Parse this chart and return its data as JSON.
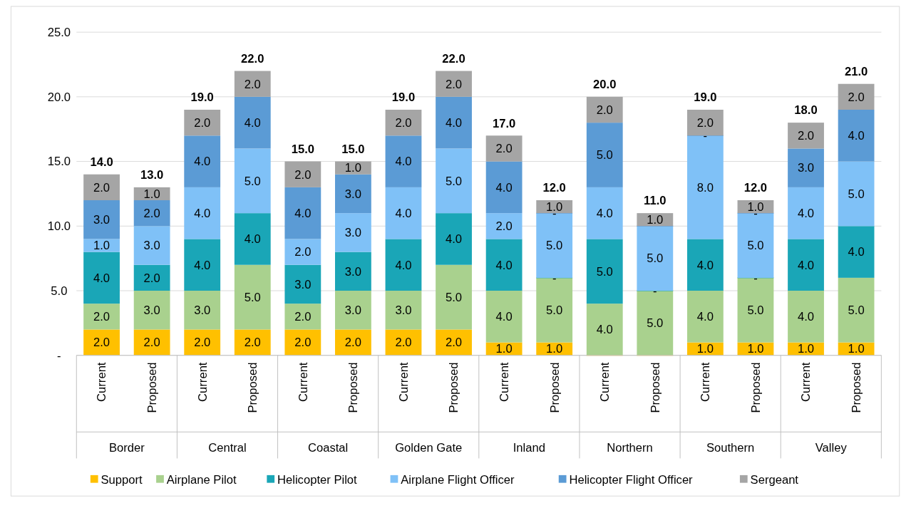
{
  "chart_data": {
    "type": "bar",
    "stacked": true,
    "categories": [
      "Current",
      "Proposed",
      "Current",
      "Proposed",
      "Current",
      "Proposed",
      "Current",
      "Proposed",
      "Current",
      "Proposed",
      "Current",
      "Proposed",
      "Current",
      "Proposed",
      "Current",
      "Proposed"
    ],
    "annotations": [
      "Border",
      "Central",
      "Coastal",
      "Golden Gate",
      "Inland",
      "Northern",
      "Southern",
      "Valley"
    ],
    "series": [
      {
        "name": "Support",
        "color": "#ffc000",
        "values": [
          2,
          2,
          2,
          2,
          2,
          2,
          2,
          2,
          1,
          1,
          0,
          0,
          1,
          1,
          1,
          1
        ],
        "value_labels": [
          "2.0",
          "2.0",
          "2.0",
          "2.0",
          "2.0",
          "2.0",
          "2.0",
          "2.0",
          "1.0",
          "1.0",
          null,
          null,
          "1.0",
          "1.0",
          "1.0",
          "1.0"
        ]
      },
      {
        "name": "Airplane Pilot",
        "color": "#a9d18e",
        "values": [
          2,
          3,
          3,
          5,
          2,
          3,
          3,
          5,
          4,
          5,
          4,
          5,
          4,
          5,
          4,
          5
        ],
        "value_labels": [
          "2.0",
          "3.0",
          "3.0",
          "5.0",
          "2.0",
          "3.0",
          "3.0",
          "5.0",
          "4.0",
          "5.0",
          "4.0",
          "5.0",
          "4.0",
          "5.0",
          "4.0",
          "5.0"
        ]
      },
      {
        "name": "Helicopter Pilot",
        "color": "#1aa6b7",
        "values": [
          4,
          2,
          4,
          4,
          3,
          3,
          4,
          4,
          4,
          0,
          5,
          0,
          4,
          0,
          4,
          4
        ],
        "value_labels": [
          "4.0",
          "2.0",
          "4.0",
          "4.0",
          "3.0",
          "3.0",
          "4.0",
          "4.0",
          "4.0",
          "-",
          "5.0",
          "-",
          "4.0",
          "-",
          "4.0",
          "4.0"
        ]
      },
      {
        "name": "Airplane Flight Officer",
        "color": "#7fc1f7",
        "values": [
          1,
          3,
          4,
          5,
          2,
          3,
          4,
          5,
          2,
          5,
          4,
          5,
          8,
          5,
          4,
          5
        ],
        "value_labels": [
          "1.0",
          "3.0",
          "4.0",
          "5.0",
          "2.0",
          "3.0",
          "4.0",
          "5.0",
          "2.0",
          "5.0",
          "4.0",
          "5.0",
          "8.0",
          "5.0",
          "4.0",
          "5.0"
        ]
      },
      {
        "name": "Helicopter Flight Officer",
        "color": "#5b9bd5",
        "values": [
          3,
          2,
          4,
          4,
          4,
          3,
          4,
          4,
          4,
          0,
          5,
          0,
          0,
          0,
          3,
          4
        ],
        "value_labels": [
          "3.0",
          "2.0",
          "4.0",
          "4.0",
          "4.0",
          "3.0",
          "4.0",
          "4.0",
          "4.0",
          "-",
          "5.0",
          null,
          "-",
          "-",
          "3.0",
          "4.0"
        ]
      },
      {
        "name": "Sergeant",
        "color": "#a5a5a5",
        "values": [
          2,
          1,
          2,
          2,
          2,
          1,
          2,
          2,
          2,
          1,
          2,
          1,
          2,
          1,
          2,
          2
        ],
        "value_labels": [
          "2.0",
          "1.0",
          "2.0",
          "2.0",
          "2.0",
          "1.0",
          "2.0",
          "2.0",
          "2.0",
          "1.0",
          "2.0",
          "1.0",
          "2.0",
          "1.0",
          "2.0",
          "2.0"
        ]
      }
    ],
    "totals": [
      "14.0",
      "13.0",
      "19.0",
      "22.0",
      "15.0",
      "15.0",
      "19.0",
      "22.0",
      "17.0",
      "12.0",
      "20.0",
      "11.0",
      "19.0",
      "12.0",
      "18.0",
      "21.0"
    ],
    "ylim": [
      0,
      25
    ],
    "yticks": [
      {
        "value": 0,
        "label": "-"
      },
      {
        "value": 5,
        "label": "5.0"
      },
      {
        "value": 10,
        "label": "10.0"
      },
      {
        "value": 15,
        "label": "15.0"
      },
      {
        "value": 20,
        "label": "20.0"
      },
      {
        "value": 25,
        "label": "25.0"
      }
    ],
    "grid": "y",
    "legend": "bottom"
  }
}
